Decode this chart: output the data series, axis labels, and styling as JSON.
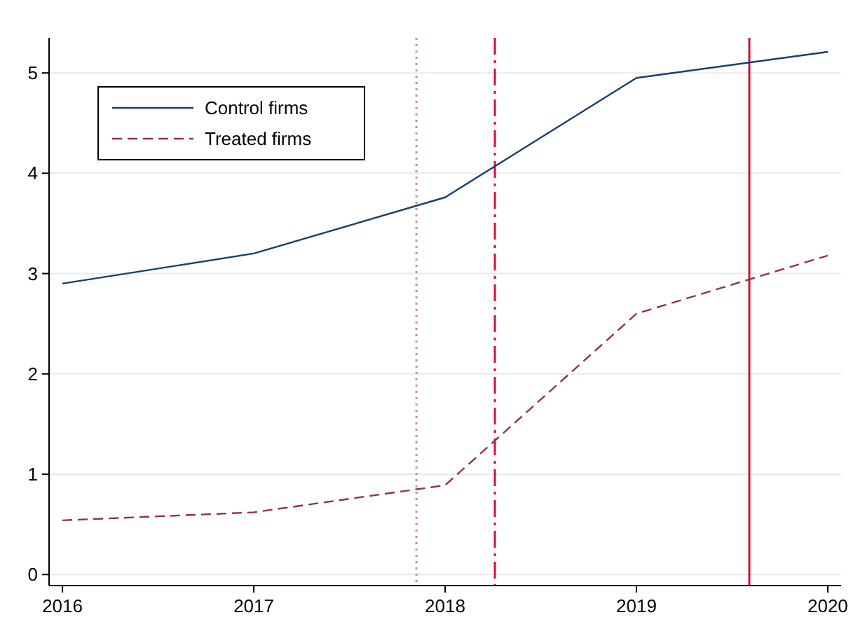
{
  "chart_data": {
    "type": "line",
    "x": [
      2016,
      2017,
      2018,
      2019,
      2020
    ],
    "series": [
      {
        "name": "Control firms",
        "color": "#1a3d6d",
        "values": [
          2.9,
          3.2,
          3.76,
          4.95,
          5.21
        ],
        "line_style": "solid"
      },
      {
        "name": "Treated firms",
        "color": "#90353b",
        "values": [
          0.54,
          0.62,
          0.89,
          2.6,
          3.18
        ],
        "line_style": "dashed"
      }
    ],
    "xlim": [
      2015.93,
      2020.07
    ],
    "xticks": [
      2016,
      2017,
      2018,
      2019,
      2020
    ],
    "ylim": [
      -0.11,
      5.35
    ],
    "yticks": [
      0,
      1,
      2,
      3,
      4,
      5
    ],
    "grid": "y",
    "legend": "top left",
    "marker": "none",
    "ref_lines": [
      {
        "axis": "x",
        "value": 2017.85,
        "color": "#c0909a",
        "line_style": "dotted"
      },
      {
        "axis": "x",
        "value": 2018.26,
        "color": "#d0103a",
        "line_style": "dashdot"
      },
      {
        "axis": "x",
        "value": 2019.59,
        "color": "#d0103a",
        "line_style": "solid"
      }
    ]
  }
}
